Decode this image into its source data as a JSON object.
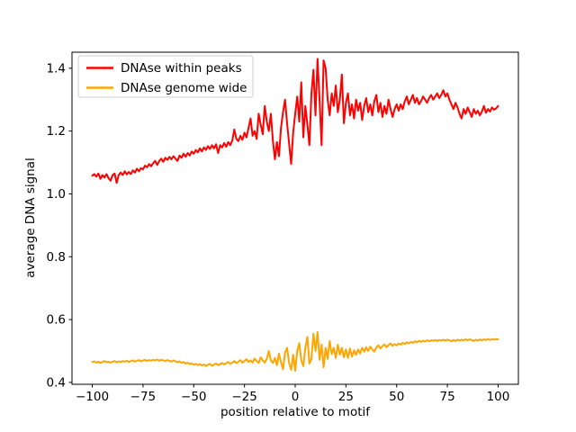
{
  "figure": {
    "background": "#ffffff",
    "axes_background": "#ffffff",
    "spine_color": "#000000"
  },
  "chart_data": {
    "type": "line",
    "title": "",
    "xlabel": "position relative to motif",
    "ylabel": "average DNA signal",
    "xlim": [
      -110,
      110
    ],
    "ylim": [
      0.394,
      1.451
    ],
    "grid": false,
    "legend": {
      "position": "upper left",
      "entries": [
        "DNAse within peaks",
        "DNAse genome wide"
      ]
    },
    "xticks": [
      -100,
      -75,
      -50,
      -25,
      0,
      25,
      50,
      75,
      100
    ],
    "xtick_labels": [
      "−100",
      "−75",
      "−50",
      "−25",
      "0",
      "25",
      "50",
      "75",
      "100"
    ],
    "yticks": [
      0.4,
      0.6,
      0.8,
      1.0,
      1.2,
      1.4
    ],
    "ytick_labels": [
      "0.4",
      "0.6",
      "0.8",
      "1.0",
      "1.2",
      "1.4"
    ],
    "x_start": -100,
    "x_step": 1,
    "series": [
      {
        "name": "DNAse within peaks",
        "color": "#ff0000",
        "values": [
          1.058,
          1.063,
          1.055,
          1.065,
          1.048,
          1.06,
          1.052,
          1.063,
          1.05,
          1.042,
          1.06,
          1.065,
          1.035,
          1.06,
          1.068,
          1.06,
          1.072,
          1.062,
          1.07,
          1.063,
          1.075,
          1.068,
          1.08,
          1.072,
          1.082,
          1.078,
          1.09,
          1.085,
          1.095,
          1.088,
          1.098,
          1.105,
          1.092,
          1.105,
          1.112,
          1.102,
          1.115,
          1.108,
          1.118,
          1.11,
          1.12,
          1.112,
          1.105,
          1.122,
          1.115,
          1.128,
          1.118,
          1.13,
          1.122,
          1.135,
          1.128,
          1.14,
          1.132,
          1.145,
          1.135,
          1.148,
          1.14,
          1.152,
          1.143,
          1.155,
          1.145,
          1.158,
          1.13,
          1.155,
          1.148,
          1.162,
          1.15,
          1.165,
          1.155,
          1.17,
          1.205,
          1.175,
          1.168,
          1.185,
          1.172,
          1.195,
          1.18,
          1.21,
          1.24,
          1.185,
          1.2,
          1.175,
          1.255,
          1.22,
          1.19,
          1.28,
          1.23,
          1.2,
          1.255,
          1.17,
          1.11,
          1.165,
          1.12,
          1.21,
          1.26,
          1.3,
          1.225,
          1.16,
          1.095,
          1.195,
          1.255,
          1.31,
          1.23,
          1.355,
          1.18,
          1.28,
          1.22,
          1.155,
          1.32,
          1.395,
          1.25,
          1.43,
          1.3,
          1.155,
          1.425,
          1.4,
          1.3,
          1.25,
          1.32,
          1.28,
          1.345,
          1.26,
          1.3,
          1.38,
          1.225,
          1.29,
          1.32,
          1.25,
          1.285,
          1.24,
          1.3,
          1.265,
          1.29,
          1.235,
          1.28,
          1.305,
          1.26,
          1.285,
          1.25,
          1.295,
          1.315,
          1.26,
          1.29,
          1.245,
          1.28,
          1.255,
          1.3,
          1.27,
          1.245,
          1.27,
          1.285,
          1.265,
          1.285,
          1.27,
          1.295,
          1.31,
          1.285,
          1.3,
          1.315,
          1.29,
          1.305,
          1.285,
          1.295,
          1.31,
          1.3,
          1.29,
          1.305,
          1.315,
          1.3,
          1.31,
          1.32,
          1.305,
          1.315,
          1.33,
          1.31,
          1.32,
          1.3,
          1.285,
          1.27,
          1.29,
          1.275,
          1.255,
          1.24,
          1.27,
          1.255,
          1.275,
          1.26,
          1.245,
          1.27,
          1.255,
          1.265,
          1.25,
          1.262,
          1.28,
          1.258,
          1.27,
          1.262,
          1.275,
          1.268,
          1.272,
          1.28
        ]
      },
      {
        "name": "DNAse genome wide",
        "color": "#ffa500",
        "values": [
          0.465,
          0.467,
          0.463,
          0.466,
          0.462,
          0.465,
          0.468,
          0.464,
          0.466,
          0.463,
          0.466,
          0.468,
          0.464,
          0.467,
          0.465,
          0.468,
          0.466,
          0.469,
          0.465,
          0.468,
          0.47,
          0.466,
          0.469,
          0.471,
          0.467,
          0.47,
          0.472,
          0.468,
          0.471,
          0.469,
          0.472,
          0.47,
          0.473,
          0.469,
          0.472,
          0.47,
          0.468,
          0.471,
          0.469,
          0.466,
          0.47,
          0.467,
          0.464,
          0.467,
          0.462,
          0.465,
          0.46,
          0.463,
          0.458,
          0.461,
          0.456,
          0.459,
          0.455,
          0.458,
          0.454,
          0.457,
          0.452,
          0.456,
          0.459,
          0.453,
          0.457,
          0.46,
          0.455,
          0.458,
          0.462,
          0.457,
          0.461,
          0.465,
          0.459,
          0.463,
          0.468,
          0.461,
          0.466,
          0.471,
          0.463,
          0.468,
          0.474,
          0.465,
          0.47,
          0.463,
          0.476,
          0.468,
          0.462,
          0.48,
          0.47,
          0.463,
          0.475,
          0.5,
          0.47,
          0.462,
          0.478,
          0.455,
          0.492,
          0.464,
          0.442,
          0.495,
          0.51,
          0.462,
          0.44,
          0.488,
          0.437,
          0.5,
          0.525,
          0.47,
          0.452,
          0.51,
          0.545,
          0.46,
          0.475,
          0.555,
          0.5,
          0.56,
          0.472,
          0.52,
          0.448,
          0.51,
          0.475,
          0.532,
          0.49,
          0.51,
          0.478,
          0.52,
          0.488,
          0.51,
          0.48,
          0.505,
          0.478,
          0.508,
          0.482,
          0.502,
          0.488,
          0.505,
          0.492,
          0.51,
          0.498,
          0.512,
          0.5,
          0.514,
          0.505,
          0.498,
          0.512,
          0.518,
          0.508,
          0.515,
          0.521,
          0.512,
          0.519,
          0.524,
          0.516,
          0.522,
          0.518,
          0.524,
          0.52,
          0.526,
          0.522,
          0.528,
          0.524,
          0.529,
          0.526,
          0.531,
          0.528,
          0.532,
          0.529,
          0.533,
          0.53,
          0.534,
          0.531,
          0.534,
          0.532,
          0.535,
          0.532,
          0.535,
          0.533,
          0.536,
          0.533,
          0.536,
          0.534,
          0.531,
          0.535,
          0.532,
          0.536,
          0.533,
          0.536,
          0.534,
          0.537,
          0.534,
          0.537,
          0.535,
          0.532,
          0.536,
          0.533,
          0.537,
          0.534,
          0.537,
          0.535,
          0.538,
          0.535,
          0.538,
          0.536,
          0.538,
          0.537
        ]
      }
    ]
  }
}
